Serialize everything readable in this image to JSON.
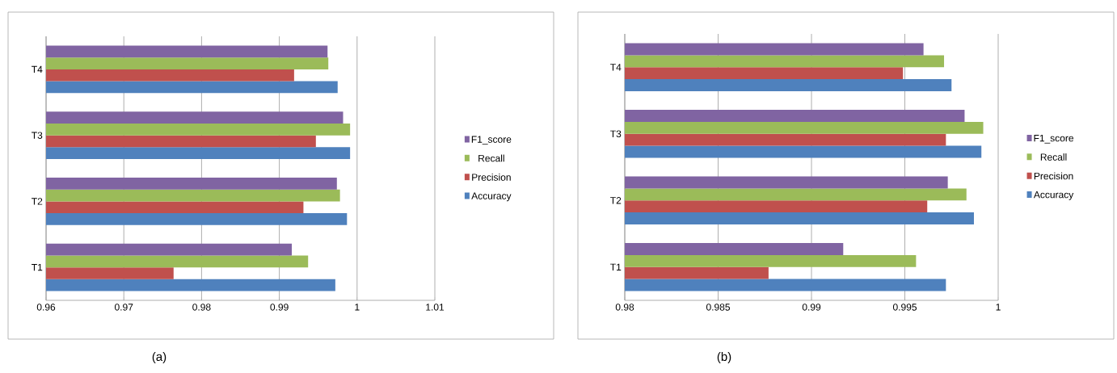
{
  "chart_data": [
    {
      "type": "bar",
      "orientation": "horizontal",
      "categories": [
        "T4",
        "T3",
        "T2",
        "T1"
      ],
      "series": [
        {
          "name": "Accuracy",
          "color": "#4f81bd",
          "values": [
            0.9975,
            0.9991,
            0.9987,
            0.9972
          ]
        },
        {
          "name": "Precision",
          "color": "#c0504d",
          "values": [
            0.9919,
            0.9947,
            0.9931,
            0.9764
          ]
        },
        {
          "name": "Recall",
          "color": "#9bbb59",
          "values": [
            0.9963,
            0.9991,
            0.9978,
            0.9937
          ]
        },
        {
          "name": "F1_score",
          "color": "#8064a2",
          "values": [
            0.9962,
            0.9982,
            0.9974,
            0.9916
          ]
        }
      ],
      "xlim": [
        0.96,
        1.01
      ],
      "xticks": [
        0.96,
        0.97,
        0.98,
        0.99,
        1,
        1.01
      ],
      "grid": "x",
      "legend": "right",
      "annotations": [
        "(a)"
      ]
    },
    {
      "type": "bar",
      "orientation": "horizontal",
      "categories": [
        "T4",
        "T3",
        "T2",
        "T1"
      ],
      "series": [
        {
          "name": "Accuracy",
          "color": "#4f81bd",
          "values": [
            0.9975,
            0.9991,
            0.9987,
            0.9972
          ]
        },
        {
          "name": "Precision",
          "color": "#c0504d",
          "values": [
            0.9949,
            0.9972,
            0.9962,
            0.9877
          ]
        },
        {
          "name": "Recall",
          "color": "#9bbb59",
          "values": [
            0.9971,
            0.9992,
            0.9983,
            0.9956
          ]
        },
        {
          "name": "F1_score",
          "color": "#8064a2",
          "values": [
            0.996,
            0.9982,
            0.9973,
            0.9917
          ]
        }
      ],
      "xlim": [
        0.98,
        1
      ],
      "xticks": [
        0.98,
        0.985,
        0.99,
        0.995,
        1
      ],
      "grid": "x",
      "legend": "right",
      "annotations": [
        "(b)"
      ]
    }
  ]
}
